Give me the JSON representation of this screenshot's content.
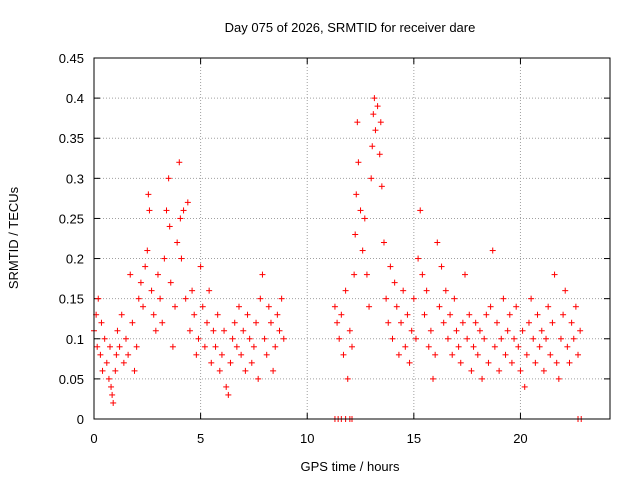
{
  "chart_data": {
    "type": "scatter",
    "title": "Day 075 of 2026, SRMTID for receiver dare",
    "xlabel": "GPS time / hours",
    "ylabel": "SRMTID / TECUs",
    "xlim": [
      0,
      24.2
    ],
    "ylim": [
      0,
      0.45
    ],
    "x_ticks": [
      0,
      5,
      10,
      15,
      20
    ],
    "x_tick_labels": [
      "0",
      "5",
      "10",
      "15",
      "20"
    ],
    "y_ticks": [
      0,
      0.05,
      0.1,
      0.15,
      0.2,
      0.25,
      0.3,
      0.35,
      0.4,
      0.45
    ],
    "y_tick_labels": [
      "0",
      "0.05",
      "0.1",
      "0.15",
      "0.2",
      "0.25",
      "0.3",
      "0.35",
      "0.4",
      "0.45"
    ],
    "grid": true,
    "marker": "+",
    "series_color": "#ff0000",
    "series": [
      {
        "name": "SRMTID",
        "points": [
          [
            0.0,
            0.11
          ],
          [
            0.1,
            0.13
          ],
          [
            0.15,
            0.09
          ],
          [
            0.2,
            0.15
          ],
          [
            0.3,
            0.08
          ],
          [
            0.35,
            0.12
          ],
          [
            0.4,
            0.06
          ],
          [
            0.5,
            0.1
          ],
          [
            0.6,
            0.07
          ],
          [
            0.7,
            0.05
          ],
          [
            0.75,
            0.09
          ],
          [
            0.8,
            0.04
          ],
          [
            0.85,
            0.03
          ],
          [
            0.9,
            0.02
          ],
          [
            1.0,
            0.06
          ],
          [
            1.05,
            0.08
          ],
          [
            1.1,
            0.11
          ],
          [
            1.2,
            0.09
          ],
          [
            1.3,
            0.13
          ],
          [
            1.4,
            0.07
          ],
          [
            1.5,
            0.1
          ],
          [
            1.6,
            0.08
          ],
          [
            1.7,
            0.18
          ],
          [
            1.8,
            0.12
          ],
          [
            1.9,
            0.06
          ],
          [
            2.0,
            0.09
          ],
          [
            2.1,
            0.15
          ],
          [
            2.2,
            0.17
          ],
          [
            2.3,
            0.14
          ],
          [
            2.4,
            0.19
          ],
          [
            2.5,
            0.21
          ],
          [
            2.55,
            0.28
          ],
          [
            2.6,
            0.26
          ],
          [
            2.7,
            0.16
          ],
          [
            2.8,
            0.13
          ],
          [
            2.9,
            0.11
          ],
          [
            3.0,
            0.18
          ],
          [
            3.1,
            0.15
          ],
          [
            3.2,
            0.12
          ],
          [
            3.3,
            0.2
          ],
          [
            3.4,
            0.26
          ],
          [
            3.5,
            0.3
          ],
          [
            3.55,
            0.24
          ],
          [
            3.6,
            0.17
          ],
          [
            3.7,
            0.09
          ],
          [
            3.8,
            0.14
          ],
          [
            3.9,
            0.22
          ],
          [
            4.0,
            0.32
          ],
          [
            4.05,
            0.25
          ],
          [
            4.1,
            0.2
          ],
          [
            4.2,
            0.26
          ],
          [
            4.3,
            0.15
          ],
          [
            4.4,
            0.27
          ],
          [
            4.5,
            0.11
          ],
          [
            4.6,
            0.16
          ],
          [
            4.7,
            0.13
          ],
          [
            4.8,
            0.08
          ],
          [
            4.9,
            0.1
          ],
          [
            5.0,
            0.19
          ],
          [
            5.1,
            0.14
          ],
          [
            5.2,
            0.09
          ],
          [
            5.3,
            0.12
          ],
          [
            5.4,
            0.16
          ],
          [
            5.5,
            0.07
          ],
          [
            5.6,
            0.11
          ],
          [
            5.7,
            0.09
          ],
          [
            5.8,
            0.13
          ],
          [
            5.9,
            0.06
          ],
          [
            6.0,
            0.08
          ],
          [
            6.1,
            0.11
          ],
          [
            6.2,
            0.04
          ],
          [
            6.3,
            0.03
          ],
          [
            6.4,
            0.07
          ],
          [
            6.5,
            0.1
          ],
          [
            6.6,
            0.12
          ],
          [
            6.7,
            0.09
          ],
          [
            6.8,
            0.14
          ],
          [
            6.9,
            0.08
          ],
          [
            7.0,
            0.11
          ],
          [
            7.1,
            0.06
          ],
          [
            7.2,
            0.13
          ],
          [
            7.3,
            0.1
          ],
          [
            7.4,
            0.07
          ],
          [
            7.5,
            0.09
          ],
          [
            7.6,
            0.12
          ],
          [
            7.7,
            0.05
          ],
          [
            7.8,
            0.15
          ],
          [
            7.9,
            0.18
          ],
          [
            8.0,
            0.1
          ],
          [
            8.1,
            0.08
          ],
          [
            8.2,
            0.14
          ],
          [
            8.3,
            0.12
          ],
          [
            8.4,
            0.06
          ],
          [
            8.5,
            0.09
          ],
          [
            8.6,
            0.13
          ],
          [
            8.7,
            0.11
          ],
          [
            8.8,
            0.15
          ],
          [
            8.9,
            0.1
          ],
          [
            11.3,
            0.14
          ],
          [
            11.4,
            0.12
          ],
          [
            11.5,
            0.1
          ],
          [
            11.6,
            0.13
          ],
          [
            11.7,
            0.08
          ],
          [
            11.8,
            0.16
          ],
          [
            11.9,
            0.05
          ],
          [
            12.0,
            0.11
          ],
          [
            12.1,
            0.09
          ],
          [
            12.2,
            0.18
          ],
          [
            12.25,
            0.23
          ],
          [
            12.3,
            0.28
          ],
          [
            12.35,
            0.37
          ],
          [
            12.4,
            0.32
          ],
          [
            12.5,
            0.26
          ],
          [
            12.6,
            0.21
          ],
          [
            12.7,
            0.25
          ],
          [
            12.8,
            0.18
          ],
          [
            12.9,
            0.14
          ],
          [
            13.0,
            0.3
          ],
          [
            13.05,
            0.34
          ],
          [
            13.1,
            0.38
          ],
          [
            13.15,
            0.4
          ],
          [
            13.2,
            0.36
          ],
          [
            13.3,
            0.39
          ],
          [
            13.4,
            0.33
          ],
          [
            13.45,
            0.37
          ],
          [
            13.5,
            0.29
          ],
          [
            13.6,
            0.22
          ],
          [
            13.7,
            0.15
          ],
          [
            13.8,
            0.12
          ],
          [
            13.9,
            0.19
          ],
          [
            14.0,
            0.1
          ],
          [
            14.1,
            0.17
          ],
          [
            14.2,
            0.14
          ],
          [
            14.3,
            0.08
          ],
          [
            14.4,
            0.12
          ],
          [
            14.5,
            0.16
          ],
          [
            14.6,
            0.09
          ],
          [
            14.7,
            0.13
          ],
          [
            14.8,
            0.07
          ],
          [
            14.9,
            0.11
          ],
          [
            15.0,
            0.15
          ],
          [
            15.1,
            0.1
          ],
          [
            15.2,
            0.2
          ],
          [
            15.3,
            0.26
          ],
          [
            15.4,
            0.18
          ],
          [
            15.5,
            0.13
          ],
          [
            15.6,
            0.16
          ],
          [
            15.7,
            0.09
          ],
          [
            15.8,
            0.11
          ],
          [
            15.9,
            0.05
          ],
          [
            16.0,
            0.08
          ],
          [
            16.1,
            0.22
          ],
          [
            16.2,
            0.14
          ],
          [
            16.3,
            0.19
          ],
          [
            16.4,
            0.12
          ],
          [
            16.5,
            0.16
          ],
          [
            16.6,
            0.1
          ],
          [
            16.7,
            0.13
          ],
          [
            16.8,
            0.08
          ],
          [
            16.9,
            0.15
          ],
          [
            17.0,
            0.11
          ],
          [
            17.1,
            0.09
          ],
          [
            17.2,
            0.07
          ],
          [
            17.3,
            0.12
          ],
          [
            17.4,
            0.18
          ],
          [
            17.5,
            0.1
          ],
          [
            17.6,
            0.13
          ],
          [
            17.7,
            0.06
          ],
          [
            17.8,
            0.09
          ],
          [
            17.9,
            0.12
          ],
          [
            18.0,
            0.08
          ],
          [
            18.1,
            0.11
          ],
          [
            18.2,
            0.05
          ],
          [
            18.3,
            0.1
          ],
          [
            18.4,
            0.13
          ],
          [
            18.5,
            0.07
          ],
          [
            18.6,
            0.14
          ],
          [
            18.7,
            0.21
          ],
          [
            18.8,
            0.09
          ],
          [
            18.9,
            0.12
          ],
          [
            19.0,
            0.06
          ],
          [
            19.1,
            0.1
          ],
          [
            19.2,
            0.15
          ],
          [
            19.3,
            0.08
          ],
          [
            19.4,
            0.11
          ],
          [
            19.5,
            0.13
          ],
          [
            19.6,
            0.07
          ],
          [
            19.7,
            0.1
          ],
          [
            19.8,
            0.14
          ],
          [
            19.9,
            0.09
          ],
          [
            20.0,
            0.06
          ],
          [
            20.1,
            0.11
          ],
          [
            20.2,
            0.04
          ],
          [
            20.3,
            0.08
          ],
          [
            20.4,
            0.12
          ],
          [
            20.5,
            0.15
          ],
          [
            20.6,
            0.1
          ],
          [
            20.7,
            0.07
          ],
          [
            20.8,
            0.13
          ],
          [
            20.9,
            0.09
          ],
          [
            21.0,
            0.11
          ],
          [
            21.1,
            0.06
          ],
          [
            21.2,
            0.1
          ],
          [
            21.3,
            0.14
          ],
          [
            21.4,
            0.08
          ],
          [
            21.5,
            0.12
          ],
          [
            21.6,
            0.18
          ],
          [
            21.7,
            0.07
          ],
          [
            21.8,
            0.05
          ],
          [
            21.9,
            0.1
          ],
          [
            22.0,
            0.13
          ],
          [
            22.1,
            0.16
          ],
          [
            22.2,
            0.09
          ],
          [
            22.3,
            0.07
          ],
          [
            22.4,
            0.12
          ],
          [
            22.5,
            0.1
          ],
          [
            22.6,
            0.14
          ],
          [
            22.7,
            0.08
          ],
          [
            22.8,
            0.11
          ],
          [
            11.3,
            0.0
          ],
          [
            11.45,
            0.0
          ],
          [
            11.6,
            0.0
          ],
          [
            11.8,
            0.0
          ],
          [
            12.0,
            0.0
          ],
          [
            12.1,
            0.0
          ],
          [
            22.7,
            0.0
          ],
          [
            22.85,
            0.0
          ]
        ]
      }
    ]
  }
}
